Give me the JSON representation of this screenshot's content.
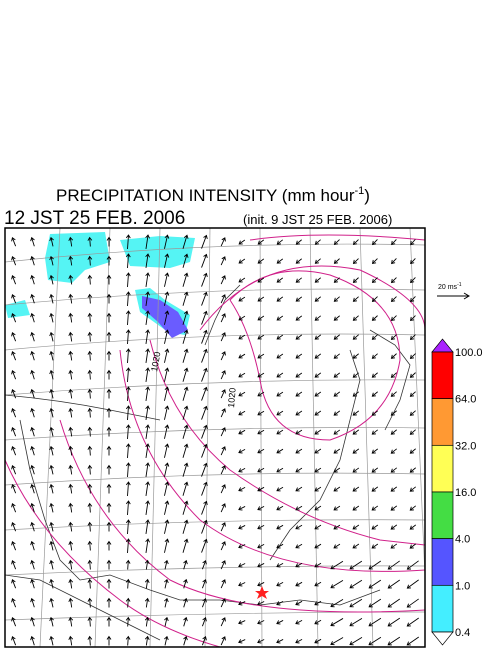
{
  "header": {
    "title": {
      "text": "PRECIPITATION INTENSITY (mm hour",
      "superscript": "-1",
      "suffix": ")"
    },
    "valid_time": "12 JST 25 FEB. 2006",
    "init_time": "(init. 9 JST 25 FEB. 2006)"
  },
  "wind_scale": {
    "text": "20 ms",
    "superscript": "-1"
  },
  "contour_labels": [
    "1020",
    "1020"
  ],
  "colorbar": {
    "labels": [
      "100.0",
      "64.0",
      "32.0",
      "16.0",
      "4.0",
      "1.0",
      "0.4"
    ],
    "colors": [
      "#ff0000",
      "#ff9933",
      "#ffff55",
      "#44dd44",
      "#5555ff",
      "#44eeff"
    ],
    "over_color": "#aa22ff",
    "under_color": "#ffffff"
  }
}
